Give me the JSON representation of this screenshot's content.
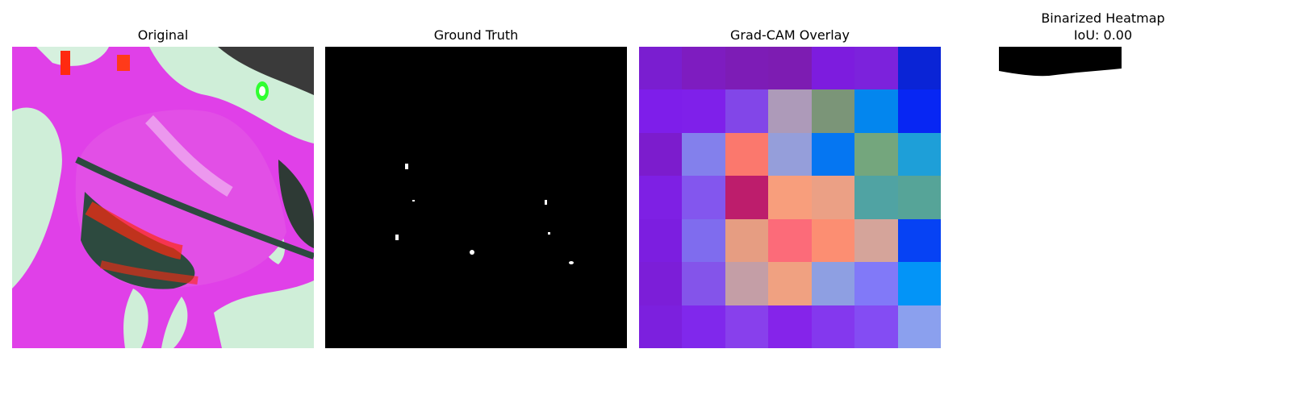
{
  "panels": {
    "original": {
      "title": "Original"
    },
    "ground_truth": {
      "title": "Ground Truth"
    },
    "gradcam": {
      "title": "Grad-CAM Overlay",
      "cells": [
        [
          "#7a1ed0",
          "#7e1cc0",
          "#7d1cb6",
          "#7d1cb2",
          "#7d1cde",
          "#7c22dc",
          "#0a24d6"
        ],
        [
          "#7e1eea",
          "#7f20ea",
          "#8246e8",
          "#ad9ab9",
          "#7b9578",
          "#0386ee",
          "#0726f3"
        ],
        [
          "#7c1ccd",
          "#8380ec",
          "#fb786d",
          "#959eda",
          "#0576f2",
          "#74a67d",
          "#1e9fd8"
        ],
        [
          "#7e20e4",
          "#8356ee",
          "#bd1d6c",
          "#f89e7c",
          "#eba085",
          "#50a3a3",
          "#56a498"
        ],
        [
          "#7c1ee0",
          "#7f6cee",
          "#e69d82",
          "#fc6b79",
          "#fc8e72",
          "#d5a49a",
          "#0642f4"
        ],
        [
          "#7c1ed8",
          "#8454ea",
          "#c49ea6",
          "#f0a181",
          "#8e9fe2",
          "#8179f8",
          "#0394f7"
        ],
        [
          "#7c20de",
          "#8028ec",
          "#8840ec",
          "#8524ea",
          "#8438ee",
          "#844cf3",
          "#8ba0ee"
        ]
      ]
    },
    "binarized": {
      "title": "Binarized Heatmap",
      "iou_label": "IoU: 0.00"
    }
  }
}
